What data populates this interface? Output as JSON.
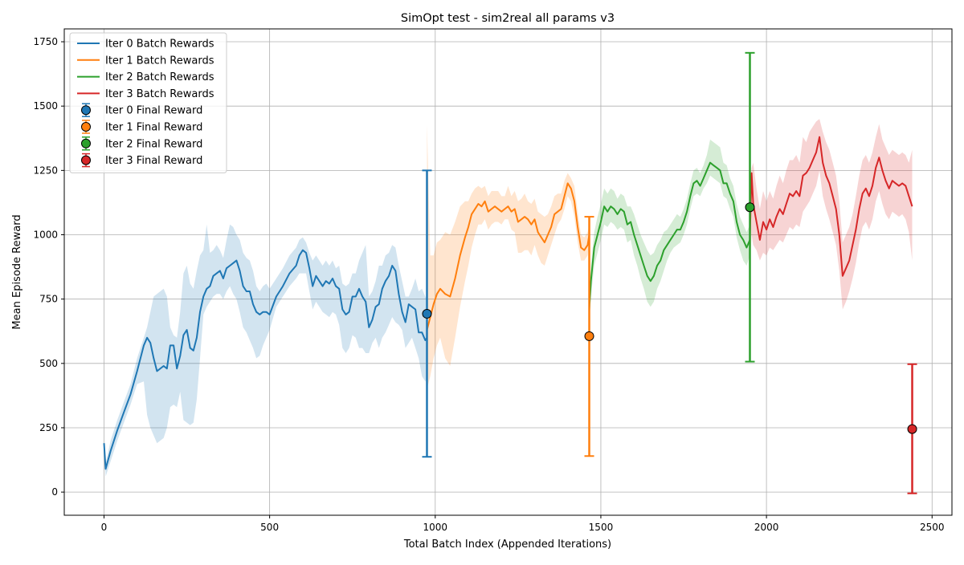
{
  "chart_data": {
    "type": "line",
    "title": "SimOpt test - sim2real all params v3",
    "xlabel": "Total Batch Index (Appended Iterations)",
    "ylabel": "Mean Episode Reward",
    "xlim": [
      -120,
      2560
    ],
    "ylim": [
      -90,
      1800
    ],
    "xticks": [
      0,
      500,
      1000,
      1500,
      2000,
      2500
    ],
    "yticks": [
      0,
      250,
      500,
      750,
      1000,
      1250,
      1500,
      1750
    ],
    "grid": true,
    "legend_position": "upper left",
    "series": [
      {
        "name": "Iter 0 Batch Rewards",
        "kind": "batch",
        "color": "#1f77b4",
        "x": [
          0,
          5,
          20,
          40,
          60,
          80,
          100,
          120,
          130,
          140,
          150,
          160,
          180,
          190,
          200,
          210,
          220,
          230,
          240,
          250,
          260,
          270,
          280,
          290,
          300,
          310,
          320,
          330,
          340,
          350,
          360,
          370,
          380,
          390,
          400,
          410,
          420,
          430,
          440,
          450,
          460,
          470,
          480,
          490,
          500,
          520,
          540,
          560,
          580,
          590,
          600,
          610,
          620,
          630,
          640,
          650,
          660,
          670,
          680,
          690,
          700,
          710,
          720,
          730,
          740,
          750,
          760,
          770,
          780,
          790,
          800,
          810,
          820,
          830,
          840,
          850,
          860,
          870,
          880,
          890,
          900,
          910,
          920,
          930,
          940,
          950,
          960,
          970,
          975
        ],
        "y": [
          190,
          90,
          160,
          240,
          310,
          380,
          470,
          570,
          600,
          580,
          520,
          470,
          490,
          480,
          570,
          570,
          480,
          530,
          610,
          630,
          560,
          550,
          600,
          700,
          760,
          790,
          800,
          840,
          850,
          860,
          830,
          870,
          880,
          890,
          900,
          860,
          800,
          780,
          780,
          730,
          700,
          690,
          700,
          700,
          690,
          760,
          800,
          850,
          880,
          920,
          940,
          930,
          870,
          800,
          840,
          820,
          800,
          820,
          810,
          830,
          800,
          790,
          710,
          690,
          700,
          760,
          760,
          790,
          760,
          740,
          640,
          670,
          720,
          730,
          790,
          820,
          840,
          880,
          860,
          770,
          700,
          660,
          730,
          720,
          710,
          620,
          620,
          590,
          600
        ],
        "band_low": [
          165,
          60,
          120,
          200,
          270,
          340,
          420,
          430,
          300,
          250,
          220,
          190,
          210,
          250,
          330,
          340,
          330,
          390,
          280,
          270,
          260,
          270,
          360,
          520,
          690,
          720,
          740,
          760,
          770,
          770,
          750,
          780,
          800,
          770,
          750,
          700,
          640,
          620,
          590,
          560,
          520,
          530,
          570,
          600,
          630,
          720,
          760,
          800,
          830,
          850,
          850,
          850,
          780,
          710,
          740,
          720,
          700,
          690,
          680,
          700,
          690,
          650,
          560,
          540,
          560,
          610,
          600,
          560,
          560,
          540,
          540,
          580,
          600,
          560,
          600,
          620,
          650,
          680,
          660,
          650,
          630,
          560,
          580,
          600,
          560,
          520,
          450,
          430,
          440
        ],
        "band_high": [
          195,
          110,
          200,
          280,
          350,
          420,
          520,
          600,
          640,
          700,
          760,
          770,
          790,
          760,
          640,
          610,
          600,
          700,
          850,
          880,
          810,
          790,
          860,
          920,
          940,
          1040,
          930,
          940,
          960,
          940,
          910,
          980,
          1040,
          1030,
          1000,
          980,
          930,
          910,
          900,
          860,
          800,
          780,
          800,
          810,
          790,
          830,
          870,
          920,
          950,
          980,
          990,
          970,
          930,
          900,
          920,
          900,
          880,
          900,
          880,
          900,
          870,
          880,
          810,
          800,
          810,
          850,
          850,
          900,
          930,
          960,
          760,
          780,
          820,
          880,
          880,
          920,
          930,
          960,
          950,
          880,
          820,
          760,
          760,
          790,
          830,
          780,
          790,
          760,
          750
        ]
      },
      {
        "name": "Iter 1 Batch Rewards",
        "kind": "batch",
        "color": "#ff7f0e",
        "x": [
          975,
          985,
          995,
          1005,
          1015,
          1030,
          1045,
          1060,
          1075,
          1090,
          1100,
          1110,
          1120,
          1130,
          1140,
          1150,
          1160,
          1170,
          1180,
          1190,
          1200,
          1210,
          1220,
          1230,
          1240,
          1250,
          1260,
          1270,
          1280,
          1290,
          1300,
          1310,
          1320,
          1330,
          1340,
          1350,
          1360,
          1370,
          1380,
          1390,
          1400,
          1410,
          1420,
          1430,
          1440,
          1450,
          1460,
          1465
        ],
        "y": [
          630,
          680,
          730,
          770,
          790,
          770,
          760,
          830,
          920,
          990,
          1030,
          1080,
          1100,
          1120,
          1110,
          1130,
          1090,
          1100,
          1110,
          1100,
          1090,
          1100,
          1110,
          1090,
          1100,
          1050,
          1060,
          1070,
          1060,
          1040,
          1060,
          1010,
          990,
          970,
          1000,
          1030,
          1080,
          1090,
          1100,
          1150,
          1200,
          1180,
          1130,
          1030,
          950,
          940,
          960,
          1000
        ],
        "band_low": [
          400,
          450,
          520,
          570,
          600,
          520,
          490,
          600,
          720,
          820,
          880,
          950,
          1000,
          1040,
          1040,
          1060,
          1020,
          1040,
          1050,
          1050,
          1040,
          1060,
          1060,
          1020,
          1010,
          930,
          930,
          940,
          940,
          920,
          960,
          920,
          890,
          880,
          920,
          960,
          1000,
          1040,
          1060,
          1100,
          1150,
          1130,
          1070,
          970,
          900,
          900,
          920,
          960
        ],
        "band_high": [
          1430,
          920,
          920,
          970,
          980,
          1010,
          1000,
          1050,
          1110,
          1130,
          1130,
          1160,
          1180,
          1190,
          1180,
          1190,
          1150,
          1170,
          1170,
          1170,
          1150,
          1150,
          1190,
          1150,
          1170,
          1130,
          1140,
          1160,
          1130,
          1120,
          1140,
          1090,
          1080,
          1070,
          1080,
          1110,
          1150,
          1160,
          1160,
          1210,
          1240,
          1220,
          1190,
          1090,
          1000,
          990,
          1010,
          1040
        ]
      },
      {
        "name": "Iter 2 Batch Rewards",
        "kind": "batch",
        "color": "#2ca02c",
        "x": [
          1465,
          1470,
          1480,
          1490,
          1500,
          1510,
          1520,
          1530,
          1540,
          1550,
          1560,
          1570,
          1580,
          1590,
          1600,
          1610,
          1620,
          1630,
          1640,
          1650,
          1660,
          1670,
          1680,
          1690,
          1700,
          1710,
          1720,
          1730,
          1740,
          1750,
          1760,
          1770,
          1780,
          1790,
          1800,
          1810,
          1820,
          1830,
          1840,
          1850,
          1860,
          1870,
          1880,
          1890,
          1900,
          1910,
          1920,
          1930,
          1940,
          1950
        ],
        "y": [
          710,
          820,
          950,
          1000,
          1050,
          1110,
          1090,
          1110,
          1100,
          1080,
          1100,
          1090,
          1040,
          1050,
          1000,
          960,
          920,
          880,
          840,
          820,
          840,
          880,
          900,
          940,
          960,
          980,
          1000,
          1020,
          1020,
          1050,
          1090,
          1150,
          1200,
          1210,
          1190,
          1220,
          1250,
          1280,
          1270,
          1260,
          1250,
          1200,
          1200,
          1160,
          1130,
          1050,
          1000,
          980,
          950,
          980
        ],
        "band_low": [
          650,
          760,
          880,
          930,
          980,
          1040,
          1030,
          1050,
          1040,
          1020,
          1030,
          1020,
          970,
          980,
          920,
          880,
          830,
          790,
          740,
          720,
          740,
          790,
          820,
          860,
          900,
          930,
          950,
          960,
          970,
          1000,
          1040,
          1100,
          1150,
          1160,
          1150,
          1180,
          1200,
          1230,
          1220,
          1210,
          1200,
          1150,
          1140,
          1100,
          1070,
          990,
          940,
          900,
          880,
          920
        ],
        "band_high": [
          790,
          880,
          1010,
          1070,
          1120,
          1180,
          1160,
          1180,
          1170,
          1140,
          1160,
          1150,
          1110,
          1110,
          1080,
          1040,
          1000,
          970,
          940,
          920,
          930,
          960,
          980,
          1010,
          1020,
          1040,
          1060,
          1080,
          1070,
          1100,
          1140,
          1200,
          1250,
          1260,
          1240,
          1270,
          1310,
          1370,
          1360,
          1350,
          1340,
          1280,
          1270,
          1220,
          1190,
          1120,
          1070,
          1040,
          1010,
          1040
        ]
      },
      {
        "name": "Iter 3 Batch Rewards",
        "kind": "batch",
        "color": "#d62728",
        "x": [
          1950,
          1955,
          1960,
          1970,
          1980,
          1990,
          2000,
          2010,
          2020,
          2030,
          2040,
          2050,
          2060,
          2070,
          2080,
          2090,
          2100,
          2110,
          2120,
          2130,
          2140,
          2150,
          2160,
          2170,
          2180,
          2190,
          2200,
          2210,
          2220,
          2230,
          2240,
          2250,
          2260,
          2270,
          2280,
          2290,
          2300,
          2310,
          2320,
          2330,
          2340,
          2350,
          2360,
          2370,
          2380,
          2390,
          2400,
          2410,
          2420,
          2430,
          2440
        ],
        "y": [
          1000,
          1240,
          1120,
          1050,
          980,
          1050,
          1020,
          1060,
          1030,
          1070,
          1100,
          1080,
          1120,
          1160,
          1150,
          1170,
          1150,
          1230,
          1240,
          1260,
          1290,
          1320,
          1380,
          1280,
          1230,
          1200,
          1150,
          1100,
          1000,
          840,
          870,
          900,
          960,
          1020,
          1100,
          1160,
          1180,
          1150,
          1190,
          1260,
          1300,
          1250,
          1210,
          1180,
          1210,
          1200,
          1190,
          1200,
          1190,
          1150,
          1110
        ],
        "band_low": [
          880,
          1000,
          960,
          940,
          900,
          930,
          920,
          950,
          940,
          960,
          980,
          970,
          1000,
          1030,
          1020,
          1040,
          1030,
          1090,
          1110,
          1130,
          1160,
          1190,
          1250,
          1150,
          1100,
          1060,
          1010,
          960,
          860,
          710,
          740,
          780,
          830,
          890,
          970,
          1030,
          1050,
          1020,
          1060,
          1130,
          1170,
          1120,
          1080,
          1060,
          1090,
          1080,
          1070,
          1080,
          1060,
          1010,
          900
        ],
        "band_high": [
          1120,
          1260,
          1280,
          1180,
          1100,
          1170,
          1130,
          1170,
          1140,
          1190,
          1230,
          1200,
          1250,
          1290,
          1290,
          1310,
          1280,
          1380,
          1360,
          1400,
          1420,
          1440,
          1450,
          1400,
          1360,
          1330,
          1280,
          1230,
          1130,
          970,
          1000,
          1030,
          1080,
          1150,
          1230,
          1290,
          1310,
          1280,
          1320,
          1380,
          1430,
          1370,
          1340,
          1310,
          1330,
          1320,
          1310,
          1320,
          1310,
          1280,
          1330
        ]
      }
    ],
    "final_points": [
      {
        "name": "Iter 0 Final Reward",
        "color": "#1f77b4",
        "x": 975,
        "y": 693,
        "err_low": 137,
        "err_high": 1250
      },
      {
        "name": "Iter 1 Final Reward",
        "color": "#ff7f0e",
        "x": 1465,
        "y": 606,
        "err_low": 140,
        "err_high": 1070
      },
      {
        "name": "Iter 2 Final Reward",
        "color": "#2ca02c",
        "x": 1950,
        "y": 1107,
        "err_low": 507,
        "err_high": 1707
      },
      {
        "name": "Iter 3 Final Reward",
        "color": "#d62728",
        "x": 2440,
        "y": 245,
        "err_low": -5,
        "err_high": 497
      }
    ]
  }
}
